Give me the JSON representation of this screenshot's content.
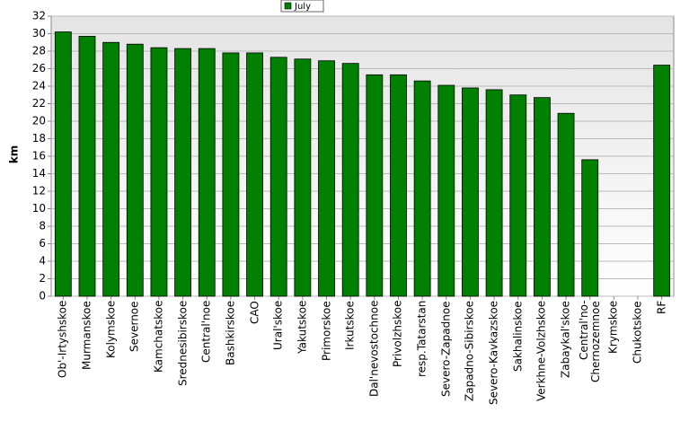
{
  "chart_data": {
    "type": "bar",
    "y_label": "km",
    "categories": [
      "Ob'-Irtyshskoe",
      "Murmanskoe",
      "Kolymskoe",
      "Severnoe",
      "Kamchatskoe",
      "Srednesibirskoe",
      "Central'noe",
      "Bashkirskoe",
      "CAO",
      "Ural'skoe",
      "Yakutskoe",
      "Primorskoe",
      "Irkutskoe",
      "Dal'nevostochnoe",
      "Privolzhskoe",
      "resp.Tatarstan",
      "Severo-Zapadnoe",
      "Zapadno-Sibirskoe",
      "Severo-Kavkazskoe",
      "Sakhalinskoe",
      "Verkhne-Volzhskoe",
      "Zabaykal'skoe",
      "Central'no-Chernozemnoe",
      "Krymskoe",
      "Chukotskoe",
      "RF"
    ],
    "series": [
      {
        "name": "July",
        "color": "#008000",
        "values": [
          30.2,
          29.7,
          29.0,
          28.8,
          28.4,
          28.3,
          28.3,
          27.8,
          27.8,
          27.3,
          27.1,
          26.9,
          26.6,
          25.3,
          25.3,
          24.6,
          24.1,
          23.8,
          23.6,
          23.0,
          22.7,
          20.9,
          15.6,
          null,
          null,
          26.4
        ]
      }
    ],
    "ylim": [
      0,
      32
    ],
    "yticks": [
      0,
      2,
      4,
      6,
      8,
      10,
      12,
      14,
      16,
      18,
      20,
      22,
      24,
      26,
      28,
      30,
      32
    ],
    "grid": true,
    "legend": "top"
  }
}
